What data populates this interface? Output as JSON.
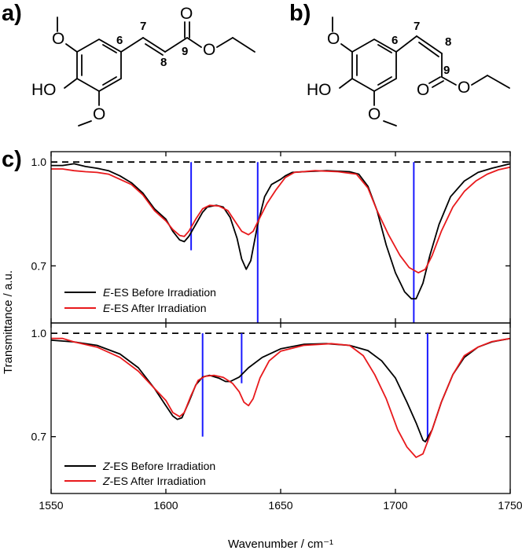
{
  "panels": {
    "a": "a)",
    "b": "b)",
    "c": "c)"
  },
  "structure_a": {
    "atom_labels": [
      "HO",
      "O",
      "O",
      "O",
      "O"
    ],
    "position_labels": [
      "6",
      "7",
      "8",
      "9"
    ]
  },
  "structure_b": {
    "atom_labels": [
      "HO",
      "O",
      "O",
      "O",
      "O"
    ],
    "position_labels": [
      "6",
      "7",
      "8",
      "9"
    ]
  },
  "colors": {
    "before": "#000000",
    "after": "#e8191c",
    "calc": "#1a1aff",
    "reference": "#000000"
  },
  "chart_data": [
    {
      "type": "line",
      "panel": "upper",
      "xlim": [
        1550,
        1750
      ],
      "ylim": [
        0.535,
        1.03
      ],
      "yticks": [
        0.7,
        1.0
      ],
      "ytick_labels": [
        "0.7",
        "1.0"
      ],
      "reference_y": 1.0,
      "series": [
        {
          "name": "E-ES Before Irradiation",
          "legend_italic": "E",
          "legend_rest": "-ES Before Irradiation",
          "color": "#000000",
          "points": [
            [
              1550,
              0.99
            ],
            [
              1555,
              0.99
            ],
            [
              1560,
              0.995
            ],
            [
              1565,
              0.987
            ],
            [
              1570,
              0.982
            ],
            [
              1575,
              0.975
            ],
            [
              1580,
              0.96
            ],
            [
              1585,
              0.94
            ],
            [
              1590,
              0.91
            ],
            [
              1595,
              0.865
            ],
            [
              1600,
              0.835
            ],
            [
              1603,
              0.8
            ],
            [
              1606,
              0.775
            ],
            [
              1608,
              0.77
            ],
            [
              1610,
              0.785
            ],
            [
              1613,
              0.82
            ],
            [
              1616,
              0.855
            ],
            [
              1618,
              0.87
            ],
            [
              1622,
              0.875
            ],
            [
              1625,
              0.87
            ],
            [
              1628,
              0.84
            ],
            [
              1631,
              0.78
            ],
            [
              1633,
              0.72
            ],
            [
              1635,
              0.69
            ],
            [
              1637,
              0.715
            ],
            [
              1640,
              0.82
            ],
            [
              1643,
              0.9
            ],
            [
              1646,
              0.935
            ],
            [
              1650,
              0.95
            ],
            [
              1652,
              0.96
            ],
            [
              1655,
              0.97
            ],
            [
              1660,
              0.972
            ],
            [
              1670,
              0.975
            ],
            [
              1680,
              0.972
            ],
            [
              1684,
              0.965
            ],
            [
              1688,
              0.93
            ],
            [
              1692,
              0.86
            ],
            [
              1696,
              0.76
            ],
            [
              1700,
              0.68
            ],
            [
              1704,
              0.625
            ],
            [
              1707,
              0.605
            ],
            [
              1709,
              0.605
            ],
            [
              1712,
              0.65
            ],
            [
              1715,
              0.73
            ],
            [
              1719,
              0.82
            ],
            [
              1724,
              0.9
            ],
            [
              1730,
              0.945
            ],
            [
              1736,
              0.97
            ],
            [
              1742,
              0.982
            ],
            [
              1750,
              0.995
            ]
          ]
        },
        {
          "name": "E-ES After Irradiation",
          "legend_italic": "E",
          "legend_rest": "-ES After Irradiation",
          "color": "#e8191c",
          "points": [
            [
              1550,
              0.98
            ],
            [
              1555,
              0.98
            ],
            [
              1560,
              0.975
            ],
            [
              1565,
              0.972
            ],
            [
              1570,
              0.97
            ],
            [
              1575,
              0.965
            ],
            [
              1580,
              0.95
            ],
            [
              1585,
              0.935
            ],
            [
              1590,
              0.905
            ],
            [
              1595,
              0.86
            ],
            [
              1600,
              0.83
            ],
            [
              1603,
              0.805
            ],
            [
              1606,
              0.788
            ],
            [
              1608,
              0.785
            ],
            [
              1610,
              0.8
            ],
            [
              1613,
              0.835
            ],
            [
              1616,
              0.865
            ],
            [
              1619,
              0.875
            ],
            [
              1623,
              0.873
            ],
            [
              1627,
              0.86
            ],
            [
              1630,
              0.83
            ],
            [
              1633,
              0.8
            ],
            [
              1636,
              0.79
            ],
            [
              1638,
              0.8
            ],
            [
              1641,
              0.84
            ],
            [
              1644,
              0.88
            ],
            [
              1648,
              0.92
            ],
            [
              1652,
              0.955
            ],
            [
              1656,
              0.97
            ],
            [
              1665,
              0.975
            ],
            [
              1675,
              0.972
            ],
            [
              1683,
              0.965
            ],
            [
              1688,
              0.925
            ],
            [
              1692,
              0.86
            ],
            [
              1697,
              0.79
            ],
            [
              1702,
              0.73
            ],
            [
              1706,
              0.695
            ],
            [
              1710,
              0.68
            ],
            [
              1713,
              0.69
            ],
            [
              1716,
              0.73
            ],
            [
              1720,
              0.8
            ],
            [
              1725,
              0.87
            ],
            [
              1730,
              0.915
            ],
            [
              1735,
              0.945
            ],
            [
              1740,
              0.965
            ],
            [
              1745,
              0.978
            ],
            [
              1750,
              0.985
            ]
          ]
        }
      ],
      "calc_lines": [
        {
          "x": 1611,
          "ymin": 0.745,
          "ymax": 1.0
        },
        {
          "x": 1640,
          "ymin": 0.535,
          "ymax": 1.0
        },
        {
          "x": 1708,
          "ymin": 0.535,
          "ymax": 1.0
        }
      ]
    },
    {
      "type": "line",
      "panel": "lower",
      "xlim": [
        1550,
        1750
      ],
      "xlabel": "Wavenumber / cm⁻¹",
      "xticks": [
        1550,
        1600,
        1650,
        1700,
        1750
      ],
      "xtick_labels": [
        "1550",
        "1600",
        "1650",
        "1700",
        "1750"
      ],
      "ylim": [
        0.535,
        1.03
      ],
      "yticks": [
        0.7,
        1.0
      ],
      "ytick_labels": [
        "0.7",
        "1.0"
      ],
      "reference_y": 1.0,
      "series": [
        {
          "name": "Z-ES Before Irradiation",
          "legend_italic": "Z",
          "legend_rest": "-ES Before Irradiation",
          "color": "#000000",
          "points": [
            [
              1550,
              0.98
            ],
            [
              1560,
              0.975
            ],
            [
              1570,
              0.965
            ],
            [
              1580,
              0.94
            ],
            [
              1588,
              0.9
            ],
            [
              1595,
              0.84
            ],
            [
              1600,
              0.79
            ],
            [
              1603,
              0.76
            ],
            [
              1605,
              0.75
            ],
            [
              1607,
              0.755
            ],
            [
              1610,
              0.8
            ],
            [
              1613,
              0.85
            ],
            [
              1616,
              0.873
            ],
            [
              1619,
              0.878
            ],
            [
              1623,
              0.87
            ],
            [
              1626,
              0.86
            ],
            [
              1628,
              0.86
            ],
            [
              1632,
              0.873
            ],
            [
              1636,
              0.9
            ],
            [
              1642,
              0.93
            ],
            [
              1650,
              0.955
            ],
            [
              1660,
              0.968
            ],
            [
              1670,
              0.97
            ],
            [
              1680,
              0.965
            ],
            [
              1688,
              0.95
            ],
            [
              1694,
              0.92
            ],
            [
              1700,
              0.87
            ],
            [
              1705,
              0.8
            ],
            [
              1709,
              0.74
            ],
            [
              1712,
              0.69
            ],
            [
              1713,
              0.685
            ],
            [
              1716,
              0.72
            ],
            [
              1720,
              0.8
            ],
            [
              1725,
              0.88
            ],
            [
              1730,
              0.93
            ],
            [
              1736,
              0.96
            ],
            [
              1742,
              0.975
            ],
            [
              1750,
              0.985
            ]
          ]
        },
        {
          "name": "Z-ES After Irradiation",
          "legend_italic": "Z",
          "legend_rest": "-ES After Irradiation",
          "color": "#e8191c",
          "points": [
            [
              1550,
              0.985
            ],
            [
              1555,
              0.985
            ],
            [
              1560,
              0.975
            ],
            [
              1570,
              0.96
            ],
            [
              1580,
              0.93
            ],
            [
              1588,
              0.89
            ],
            [
              1595,
              0.84
            ],
            [
              1600,
              0.805
            ],
            [
              1603,
              0.77
            ],
            [
              1606,
              0.758
            ],
            [
              1608,
              0.77
            ],
            [
              1611,
              0.82
            ],
            [
              1614,
              0.863
            ],
            [
              1617,
              0.875
            ],
            [
              1621,
              0.878
            ],
            [
              1625,
              0.872
            ],
            [
              1629,
              0.855
            ],
            [
              1632,
              0.83
            ],
            [
              1634,
              0.8
            ],
            [
              1636,
              0.79
            ],
            [
              1638,
              0.81
            ],
            [
              1641,
              0.87
            ],
            [
              1645,
              0.92
            ],
            [
              1650,
              0.948
            ],
            [
              1660,
              0.965
            ],
            [
              1672,
              0.97
            ],
            [
              1680,
              0.965
            ],
            [
              1686,
              0.935
            ],
            [
              1691,
              0.88
            ],
            [
              1696,
              0.81
            ],
            [
              1701,
              0.72
            ],
            [
              1705,
              0.67
            ],
            [
              1709,
              0.64
            ],
            [
              1712,
              0.65
            ],
            [
              1716,
              0.72
            ],
            [
              1720,
              0.8
            ],
            [
              1725,
              0.88
            ],
            [
              1730,
              0.935
            ],
            [
              1736,
              0.96
            ],
            [
              1742,
              0.976
            ],
            [
              1750,
              0.985
            ]
          ]
        }
      ],
      "calc_lines": [
        {
          "x": 1616,
          "ymin": 0.7,
          "ymax": 1.0
        },
        {
          "x": 1633,
          "ymin": 0.855,
          "ymax": 1.0
        },
        {
          "x": 1714,
          "ymin": 0.685,
          "ymax": 1.0
        }
      ]
    }
  ],
  "ylabel": "Transmittance / a.u."
}
